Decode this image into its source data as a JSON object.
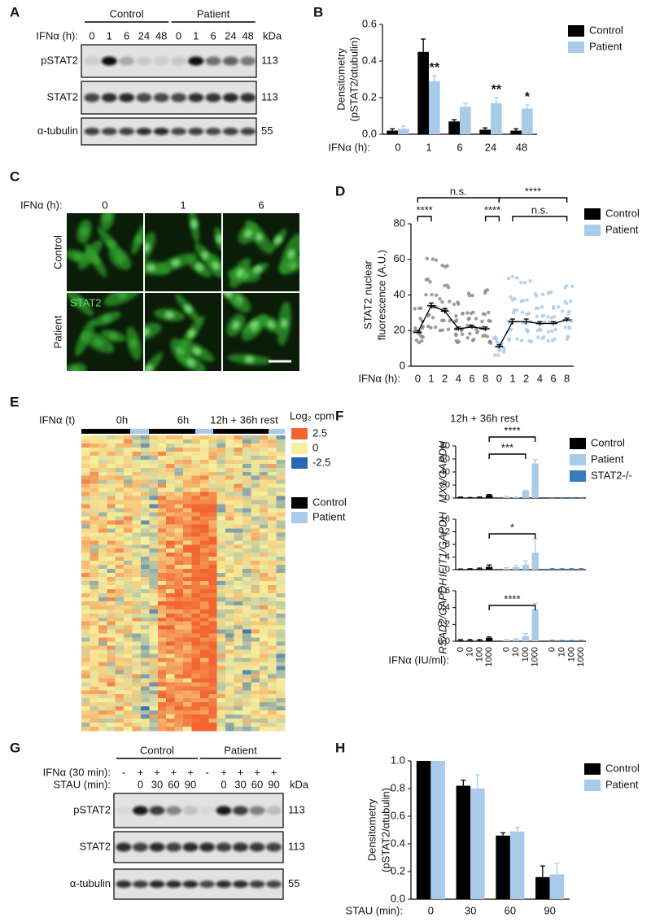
{
  "panel_labels": [
    "A",
    "B",
    "C",
    "D",
    "E",
    "F",
    "G",
    "H"
  ],
  "blot_a": {
    "groups": [
      "Control",
      "Patient"
    ],
    "xlabel": "IFNα (h):",
    "lanes": [
      "0",
      "1",
      "6",
      "24",
      "48",
      "0",
      "1",
      "6",
      "24",
      "48"
    ],
    "unit": "kDa",
    "rows": [
      "pSTAT2",
      "STAT2",
      "α-tubulin"
    ],
    "sizes": [
      "113",
      "113",
      "55"
    ]
  },
  "microscopy": {
    "xlabel": "IFNα (h):",
    "columns": [
      "0",
      "1",
      "6"
    ],
    "rows": [
      "Control",
      "Patient"
    ],
    "stain": "STAT2"
  },
  "heatmap": {
    "xlabel": "IFNα (t)",
    "timepoints": [
      "0h",
      "6h",
      "12h + 36h rest"
    ],
    "scale_title": "Log₂ cpm",
    "scale": [
      {
        "value": 2.5,
        "color": "#f26531"
      },
      {
        "value": 0,
        "color": "#f7ef9c"
      },
      {
        "value": -2.5,
        "color": "#2b66b3"
      }
    ],
    "legend": [
      {
        "name": "Control",
        "color": "#000000"
      },
      {
        "name": "Patient",
        "color": "#a9cbea"
      }
    ]
  },
  "blot_g": {
    "groups": [
      "Control",
      "Patient"
    ],
    "treatment_label": "IFNα (30 min):",
    "treatment": [
      "-",
      "+",
      "+",
      "+",
      "+",
      "-",
      "+",
      "+",
      "+",
      "+"
    ],
    "chase_label": "STAU (min):",
    "chase": [
      null,
      "0",
      "30",
      "60",
      "90",
      null,
      "0",
      "30",
      "60",
      "90"
    ],
    "unit": "kDa",
    "rows": [
      "pSTAT2",
      "STAT2",
      "α-tubulin"
    ],
    "sizes": [
      "113",
      "113",
      "55"
    ]
  },
  "chart_data": [
    {
      "type": "bar",
      "ylabel": [
        "Densitometry",
        "(pSTAT2/αtubulin)"
      ],
      "xlabel": "IFNα (h):",
      "categories": [
        "0",
        "1",
        "6",
        "24",
        "48"
      ],
      "series": [
        {
          "name": "Control",
          "color": "#000000",
          "values": [
            0.02,
            0.45,
            0.07,
            0.025,
            0.02
          ],
          "errors": [
            0.01,
            0.07,
            0.01,
            0.01,
            0.01
          ]
        },
        {
          "name": "Patient",
          "color": "#a9cbea",
          "values": [
            0.03,
            0.29,
            0.15,
            0.17,
            0.14
          ],
          "errors": [
            0.015,
            0.03,
            0.02,
            0.03,
            0.02
          ],
          "significance": [
            null,
            "**",
            null,
            "**",
            "*"
          ]
        }
      ],
      "ylim": [
        0,
        0.6
      ],
      "yticks": [
        {
          "value": 0,
          "label": "0.0"
        },
        0.2,
        0.4,
        0.6
      ],
      "legend": "right"
    },
    {
      "type": "dot",
      "ylabel": [
        "STAT2 nuclear",
        "fluorescence (A.U.)"
      ],
      "xlabel": "IFNα (h):",
      "categories": [
        "0",
        "1",
        "2",
        "4",
        "6",
        "8",
        "0",
        "1",
        "2",
        "4",
        "6",
        "8"
      ],
      "series": [
        {
          "name": "Control",
          "color": "#000000",
          "point_color": "#8c8c8c",
          "values": [
            19,
            34,
            31,
            21,
            22,
            21,
            null,
            null,
            null,
            null,
            null,
            null
          ],
          "errors": [
            1,
            1.5,
            1.5,
            1,
            1,
            1,
            null,
            null,
            null,
            null,
            null,
            null
          ],
          "points": [
            [
              14,
              17,
              19,
              22,
              26,
              33
            ],
            [
              22,
              28,
              34,
              40,
              48,
              60
            ],
            [
              20,
              26,
              31,
              37,
              45,
              56
            ],
            [
              14,
              18,
              21,
              25,
              29,
              35
            ],
            [
              15,
              19,
              22,
              26,
              30,
              40
            ],
            [
              13,
              17,
              21,
              25,
              30,
              42
            ],
            null,
            null,
            null,
            null,
            null,
            null
          ]
        },
        {
          "name": "Patient",
          "color": "#a9cbea",
          "point_color": "#a9cbea",
          "values": [
            null,
            null,
            null,
            null,
            null,
            null,
            11,
            25,
            25,
            24,
            24,
            26
          ],
          "errors": [
            null,
            null,
            null,
            null,
            null,
            null,
            1,
            1.5,
            1.5,
            1,
            1,
            1
          ],
          "points": [
            null,
            null,
            null,
            null,
            null,
            null,
            [
              7,
              9,
              11,
              13,
              16
            ],
            [
              15,
              20,
              25,
              31,
              38,
              50
            ],
            [
              14,
              20,
              25,
              30,
              37,
              47
            ],
            [
              16,
              20,
              24,
              28,
              33,
              40
            ],
            [
              15,
              20,
              24,
              28,
              33,
              42
            ],
            [
              16,
              21,
              26,
              30,
              36,
              45
            ]
          ]
        }
      ],
      "ylim": [
        0,
        80
      ],
      "yticks": [
        0,
        20,
        40,
        60,
        80
      ],
      "brackets": [
        "n.s.",
        "****",
        "****",
        "****",
        "n.s."
      ],
      "legend": "right"
    },
    {
      "type": "bar",
      "title": "12h + 36h rest",
      "ylabel": "MX1/GAPDH",
      "series": [
        {
          "name": "Control",
          "color": "#000000",
          "values": [
            1,
            0.5,
            1,
            4.5,
            null,
            null,
            null,
            null,
            null,
            null,
            null,
            null
          ],
          "errors": [
            0.5,
            0.3,
            0.5,
            1,
            null,
            null,
            null,
            null,
            null,
            null,
            null,
            null
          ]
        },
        {
          "name": "Patient",
          "color": "#a9cbea",
          "values": [
            null,
            null,
            null,
            null,
            1.5,
            1,
            11,
            53,
            null,
            null,
            null,
            null
          ],
          "errors": [
            null,
            null,
            null,
            null,
            1,
            0.5,
            1,
            6,
            null,
            null,
            null,
            null
          ]
        },
        {
          "name": "STAT2-/-",
          "color": "#3a7cc0",
          "values": [
            null,
            null,
            null,
            null,
            null,
            null,
            null,
            null,
            0.3,
            0.3,
            0.3,
            0.3
          ],
          "errors": [
            null,
            null,
            null,
            null,
            null,
            null,
            null,
            null,
            0.2,
            0.2,
            0.2,
            0.2
          ]
        }
      ],
      "ylim": [
        0,
        80
      ],
      "yticks": [
        0,
        20,
        40,
        60,
        80
      ],
      "brackets": [
        "****",
        "***"
      ],
      "legend": "right"
    },
    {
      "type": "bar",
      "ylabel": "IFIT1/GAPDH",
      "series": [
        {
          "color": "#000000",
          "values": [
            0.1,
            0.2,
            0.3,
            0.9,
            null,
            null,
            null,
            null,
            null,
            null,
            null,
            null
          ],
          "errors": [
            0.1,
            0.1,
            0.2,
            0.6,
            null,
            null,
            null,
            null,
            null,
            null,
            null,
            null
          ]
        },
        {
          "color": "#a9cbea",
          "values": [
            null,
            null,
            null,
            null,
            0.3,
            0.8,
            1.6,
            5.4,
            null,
            null,
            null,
            null
          ],
          "errors": [
            null,
            null,
            null,
            null,
            0.3,
            0.5,
            1.2,
            4.4,
            null,
            null,
            null,
            null
          ]
        },
        {
          "color": "#3a7cc0",
          "values": [
            null,
            null,
            null,
            null,
            null,
            null,
            null,
            null,
            0.2,
            0.2,
            0.2,
            0.2
          ],
          "errors": [
            null,
            null,
            null,
            null,
            null,
            null,
            null,
            null,
            0.1,
            0.1,
            0.1,
            0.1
          ]
        }
      ],
      "ylim": [
        0,
        16
      ],
      "yticks": [
        0,
        4,
        8,
        12,
        16
      ],
      "brackets": [
        "*"
      ]
    },
    {
      "type": "bar",
      "ylabel": "RSAD2/GAPDH",
      "xlabel": "IFNα (IU/ml):",
      "categories": [
        "0",
        "10",
        "100",
        "1000",
        "0",
        "10",
        "100",
        "1000",
        "0",
        "10",
        "100",
        "1000"
      ],
      "series": [
        {
          "color": "#000000",
          "values": [
            0.01,
            0.01,
            0.01,
            0.04,
            null,
            null,
            null,
            null,
            null,
            null,
            null,
            null
          ],
          "errors": [
            0.01,
            0.01,
            0.01,
            0.01,
            null,
            null,
            null,
            null,
            null,
            null,
            null,
            null
          ]
        },
        {
          "color": "#a9cbea",
          "values": [
            null,
            null,
            null,
            null,
            0.01,
            0.02,
            0.06,
            0.38,
            null,
            null,
            null,
            null
          ],
          "errors": [
            null,
            null,
            null,
            null,
            0.01,
            0.01,
            0.03,
            0.07,
            null,
            null,
            null,
            null
          ]
        },
        {
          "color": "#3a7cc0",
          "values": [
            null,
            null,
            null,
            null,
            null,
            null,
            null,
            null,
            0.005,
            0.005,
            0.005,
            0.005
          ],
          "errors": [
            null,
            null,
            null,
            null,
            null,
            null,
            null,
            null,
            0.005,
            0.005,
            0.005,
            0.005
          ]
        }
      ],
      "ylim": [
        0,
        0.6
      ],
      "yticks": [
        {
          "value": 0,
          "label": "0.0"
        },
        0.2,
        0.4,
        0.6
      ],
      "brackets": [
        "****"
      ]
    },
    {
      "type": "bar",
      "ylabel": [
        "Densitometry",
        "(pSTAT2/αtubulin)"
      ],
      "xlabel": "STAU (min):",
      "categories": [
        "0",
        "30",
        "60",
        "90"
      ],
      "series": [
        {
          "name": "Control",
          "color": "#000000",
          "values": [
            1.0,
            0.82,
            0.46,
            0.16
          ],
          "errors": [
            0,
            0.04,
            0.02,
            0.08
          ]
        },
        {
          "name": "Patient",
          "color": "#a9cbea",
          "values": [
            1.0,
            0.8,
            0.49,
            0.18
          ],
          "errors": [
            0,
            0.1,
            0.03,
            0.08
          ]
        }
      ],
      "ylim": [
        0,
        1
      ],
      "yticks": [
        {
          "value": 0,
          "label": "0.0"
        },
        0.2,
        0.4,
        0.6,
        0.8,
        {
          "value": 1,
          "label": "1.0"
        }
      ],
      "legend": "right"
    }
  ]
}
